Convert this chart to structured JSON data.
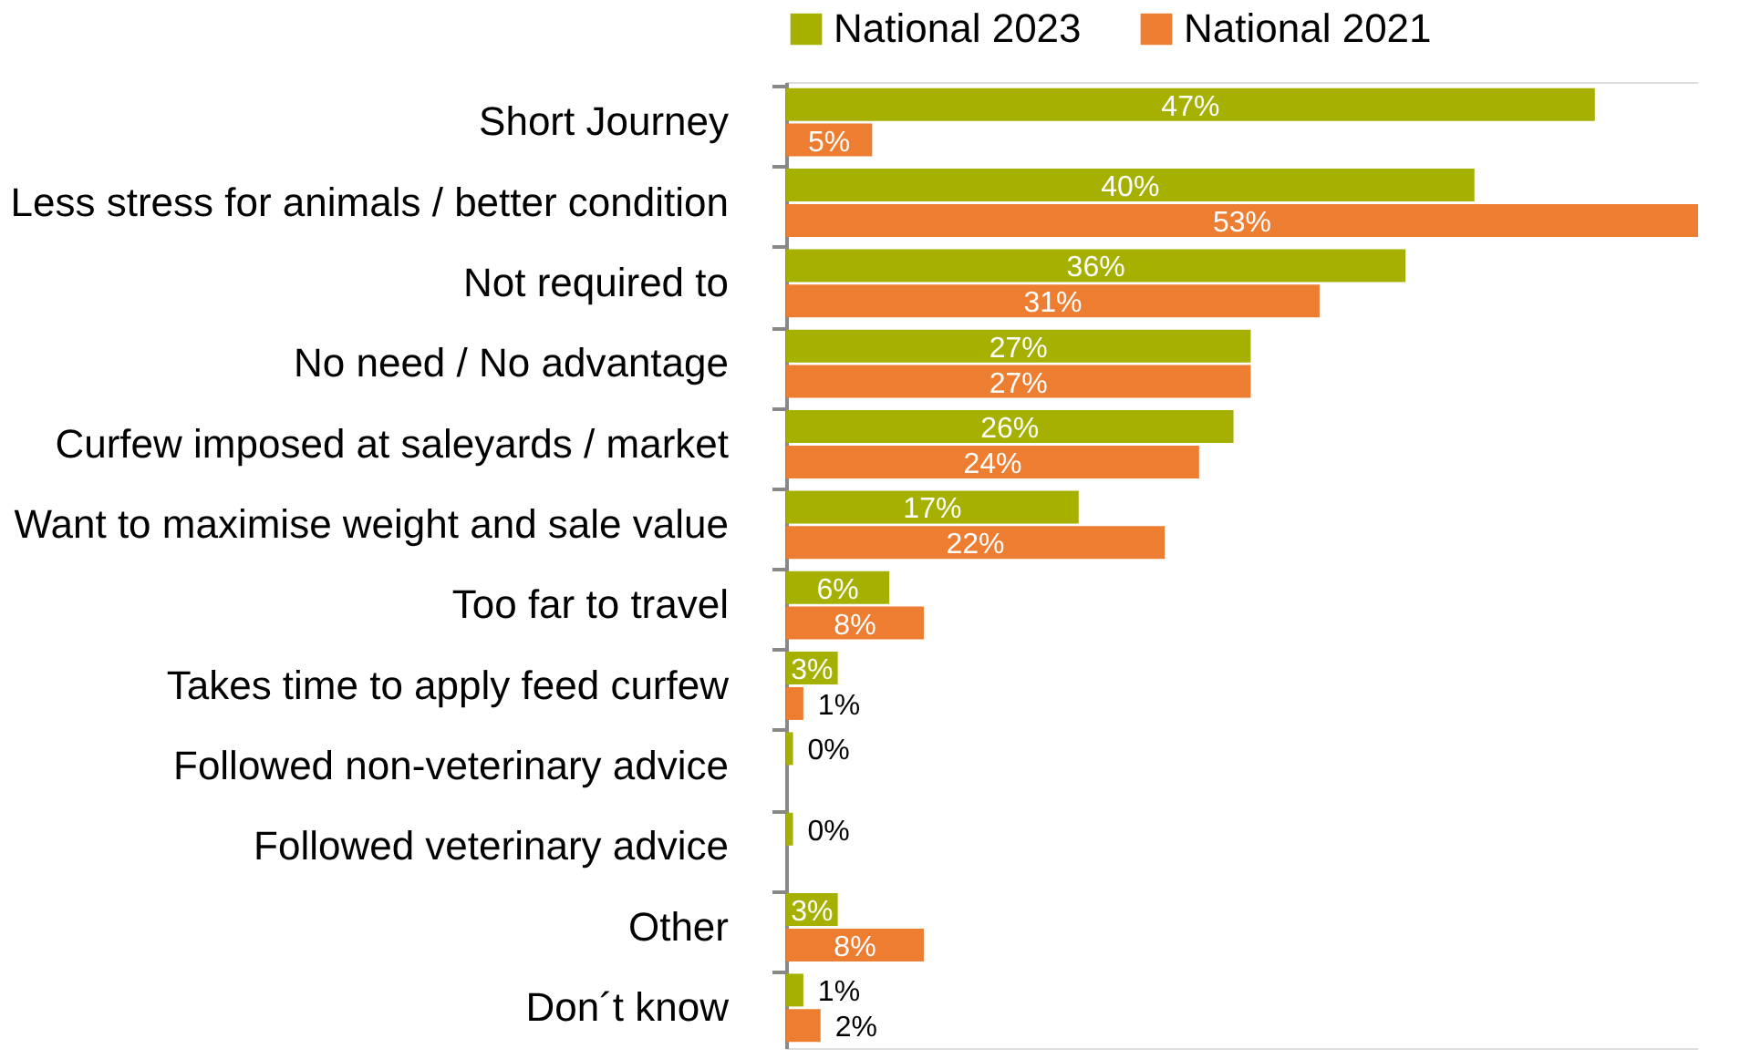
{
  "chart_data": {
    "type": "bar",
    "orientation": "horizontal",
    "legend": "top",
    "categories": [
      "Short Journey",
      "Less stress for animals / better condition",
      "Not required to",
      "No need / No advantage",
      "Curfew imposed at saleyards / market",
      "Want to maximise weight and sale value",
      "Too far to travel",
      "Takes time to apply feed curfew",
      "Followed non-veterinary advice",
      "Followed veterinary advice",
      "Other",
      "Don´t know"
    ],
    "series": [
      {
        "name": "National 2023",
        "color": "#a5b000",
        "values": [
          47,
          40,
          36,
          27,
          26,
          17,
          6,
          3,
          0.4,
          0.4,
          3,
          1
        ],
        "value_labels": [
          "47%",
          "40%",
          "36%",
          "27%",
          "26%",
          "17%",
          "6%",
          "3%",
          "0%",
          "0%",
          "3%",
          "1%"
        ]
      },
      {
        "name": "National 2021",
        "color": "#ed7d31",
        "values": [
          5,
          53,
          31,
          27,
          24,
          22,
          8,
          1,
          null,
          null,
          8,
          2
        ],
        "value_labels": [
          "5%",
          "53%",
          "31%",
          "27%",
          "24%",
          "22%",
          "8%",
          "1%",
          null,
          null,
          "8%",
          "2%"
        ]
      }
    ],
    "xlim": [
      0,
      53
    ],
    "grid": false
  }
}
